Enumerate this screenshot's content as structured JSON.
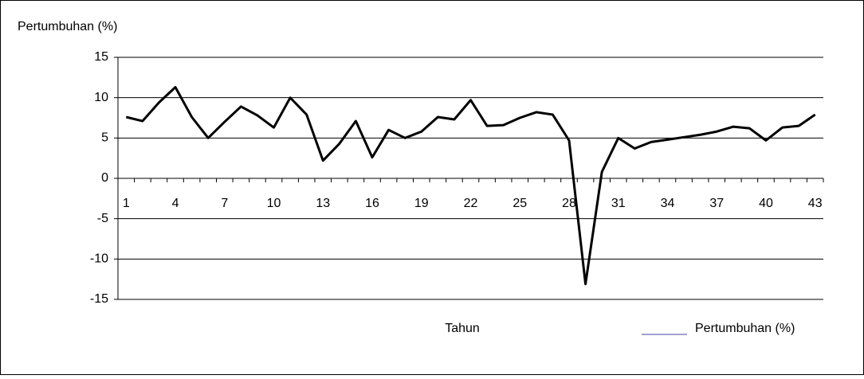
{
  "chart_data": {
    "type": "line",
    "y_label": "Pertumbuhan (%)",
    "x_label": "Tahun",
    "categories": [
      "1",
      null,
      null,
      "4",
      null,
      null,
      "7",
      null,
      null,
      "10",
      null,
      null,
      "13",
      null,
      null,
      "16",
      null,
      null,
      "19",
      null,
      null,
      "22",
      null,
      null,
      "25",
      null,
      null,
      "28",
      null,
      null,
      "31",
      null,
      null,
      "34",
      null,
      null,
      "37",
      null,
      null,
      "40",
      null,
      null,
      "43"
    ],
    "series": [
      {
        "name": "Pertumbuhan (%)",
        "color": "#000000",
        "values": [
          7.6,
          7.1,
          9.4,
          11.3,
          7.6,
          5.0,
          7.0,
          8.9,
          7.8,
          6.3,
          10.0,
          7.9,
          2.2,
          4.3,
          7.1,
          2.6,
          6.0,
          5.0,
          5.8,
          7.6,
          7.3,
          9.7,
          6.5,
          6.6,
          7.5,
          8.2,
          7.9,
          4.7,
          -13.1,
          0.8,
          5.0,
          3.7,
          4.5,
          4.8,
          5.1,
          5.4,
          5.8,
          6.4,
          6.2,
          4.7,
          6.3,
          6.5,
          7.9
        ]
      }
    ],
    "legend_color": "#4040a0",
    "ylim": [
      -15,
      15
    ],
    "yticks": [
      -15,
      -10,
      -5,
      0,
      5,
      10,
      15
    ],
    "grid": true,
    "legend_position": "bottom-right"
  }
}
